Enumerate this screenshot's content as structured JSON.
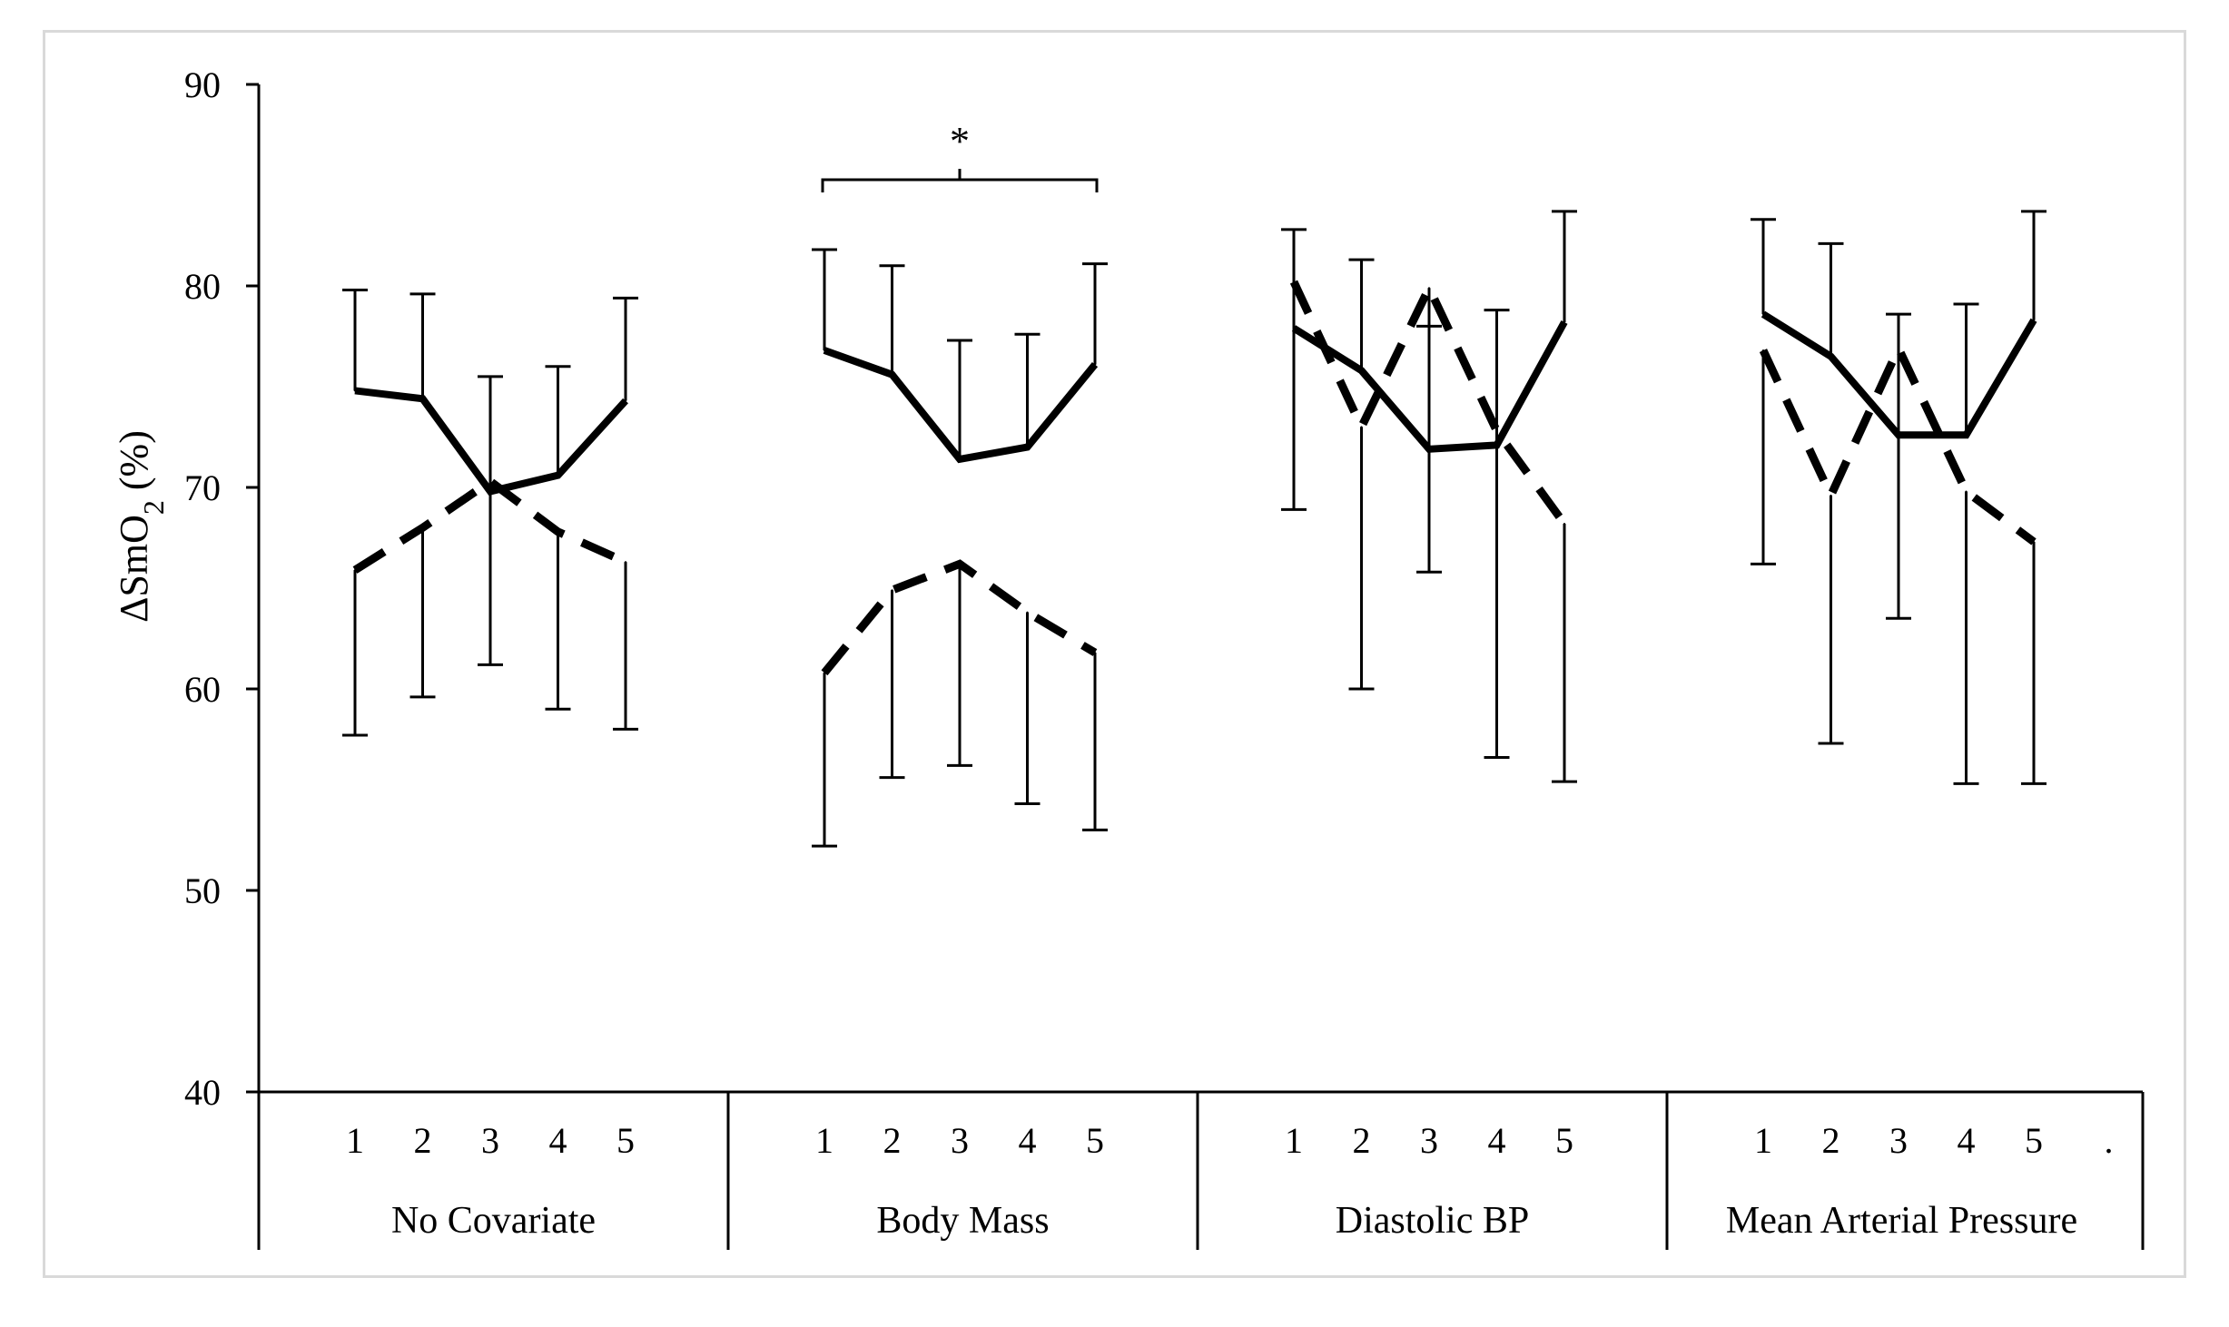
{
  "chart_data": {
    "type": "line",
    "ylabel": "ΔSmO",
    "ylabel_sub": "2",
    "ylabel_suffix": " (%)",
    "ylim": [
      40,
      90
    ],
    "yticks": [
      40,
      50,
      60,
      70,
      80,
      90
    ],
    "groups": [
      {
        "label": "No Covariate",
        "x": [
          "1",
          "2",
          "3",
          "4",
          "5"
        ]
      },
      {
        "label": "Body Mass",
        "x": [
          "1",
          "2",
          "3",
          "4",
          "5"
        ]
      },
      {
        "label": "Diastolic BP",
        "x": [
          "1",
          "2",
          "3",
          "4",
          "5"
        ]
      },
      {
        "label": "Mean Arterial Pressure",
        "x": [
          "1",
          "2",
          "3",
          "4",
          "5"
        ]
      }
    ],
    "extra_tick": ".",
    "series": [
      {
        "style": "solid",
        "groups": [
          {
            "values": [
              74.8,
              74.4,
              69.8,
              70.6,
              74.3
            ],
            "error": [
              5.0,
              5.2,
              5.7,
              5.4,
              5.1
            ]
          },
          {
            "values": [
              76.8,
              75.6,
              71.4,
              72.0,
              76.1
            ],
            "error": [
              5.0,
              5.4,
              5.9,
              5.6,
              5.0
            ]
          },
          {
            "values": [
              77.9,
              75.8,
              71.9,
              72.1,
              78.2
            ],
            "error": [
              4.9,
              5.5,
              6.1,
              6.7,
              5.5
            ]
          },
          {
            "values": [
              78.6,
              76.5,
              72.6,
              72.6,
              78.3
            ],
            "error": [
              4.7,
              5.6,
              6.0,
              6.5,
              5.4
            ]
          }
        ]
      },
      {
        "style": "dashed",
        "groups": [
          {
            "values": [
              65.9,
              68.0,
              70.3,
              67.8,
              66.3
            ],
            "error": [
              8.2,
              8.4,
              9.1,
              8.8,
              8.3
            ]
          },
          {
            "values": [
              60.8,
              64.9,
              66.2,
              63.8,
              61.8
            ],
            "error": [
              8.6,
              9.3,
              10.0,
              9.5,
              8.8
            ]
          },
          {
            "values": [
              80.2,
              73.0,
              79.9,
              72.8,
              68.2
            ],
            "error": [
              11.3,
              13.0,
              14.1,
              16.2,
              12.8
            ]
          },
          {
            "values": [
              76.8,
              69.6,
              76.9,
              69.8,
              67.3
            ],
            "error": [
              10.6,
              12.3,
              13.4,
              14.5,
              12.0
            ]
          }
        ]
      }
    ],
    "annotations": [
      {
        "text": "*",
        "type": "bracket",
        "group": 1,
        "from_x": "1",
        "to_x": "5"
      }
    ]
  }
}
